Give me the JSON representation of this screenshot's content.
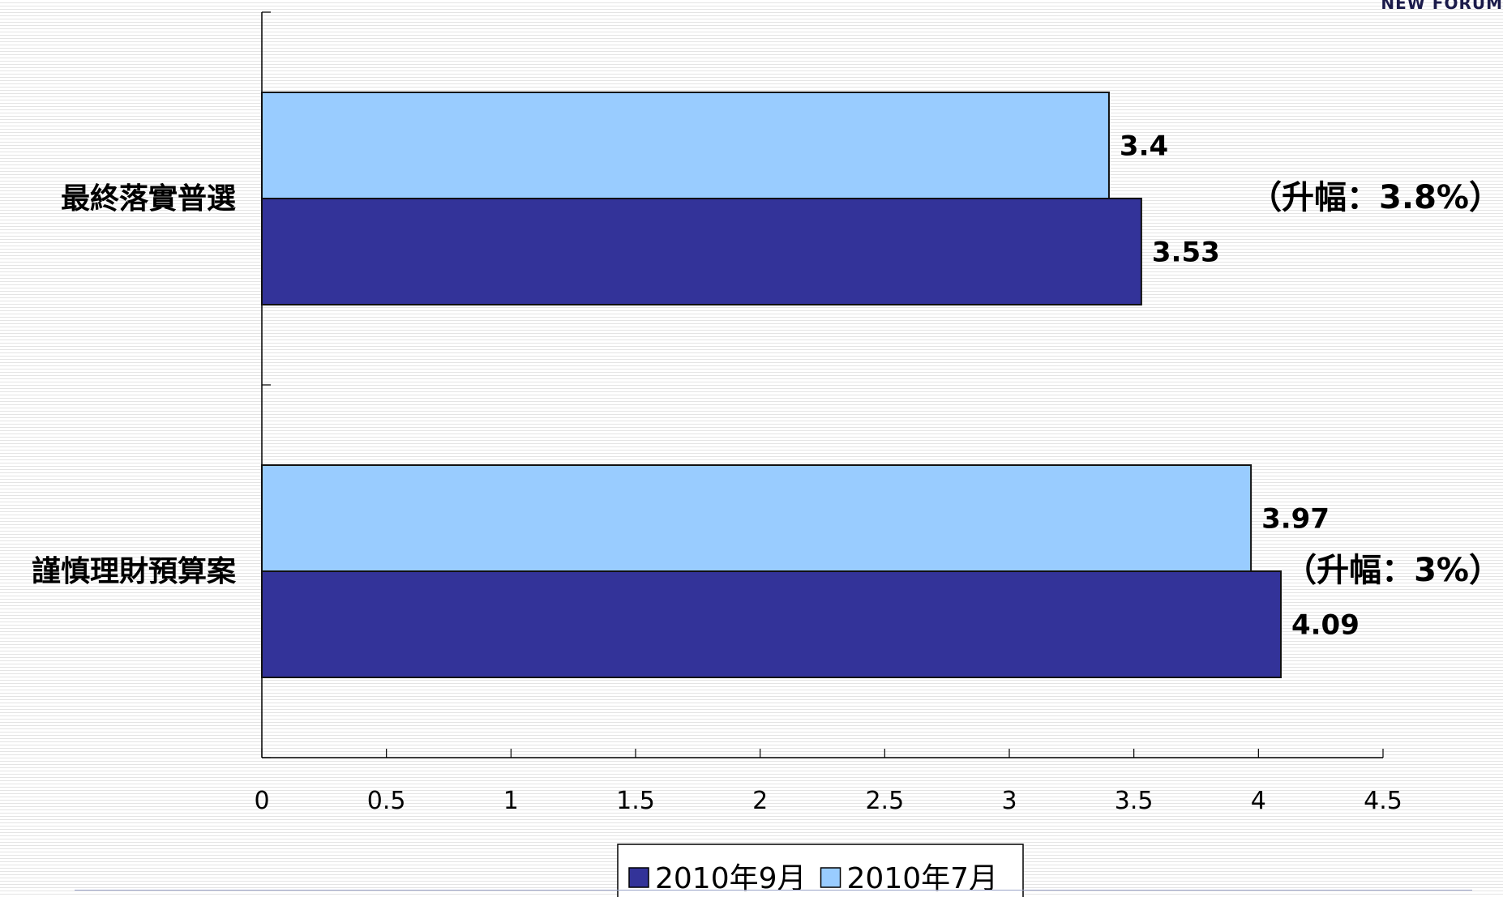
{
  "logo_text": "NEW FORUM",
  "colors": {
    "sep_2010": "#333399",
    "jul_2010": "#99ccff",
    "frame": "#000000",
    "bar_border": "#111111"
  },
  "chart_data": {
    "type": "bar",
    "orientation": "horizontal",
    "categories": [
      "最終落實普選",
      "謹慎理財預算案"
    ],
    "series": [
      {
        "name": "2010年7月",
        "values": [
          3.4,
          3.97
        ],
        "labels": [
          "3.4",
          "3.97"
        ]
      },
      {
        "name": "2010年9月",
        "values": [
          3.53,
          4.09
        ],
        "labels": [
          "3.53",
          "4.09"
        ]
      }
    ],
    "annotations": [
      "（升幅：3.8%）",
      "（升幅：3%）"
    ],
    "xlim": [
      0,
      4.5
    ],
    "xticks": [
      "0",
      "0.5",
      "1",
      "1.5",
      "2",
      "2.5",
      "3",
      "3.5",
      "4",
      "4.5"
    ],
    "legend": {
      "position": "bottom",
      "entries": [
        {
          "name": "2010年9月",
          "series": 1
        },
        {
          "name": "2010年7月",
          "series": 0
        }
      ]
    },
    "grid": false
  }
}
